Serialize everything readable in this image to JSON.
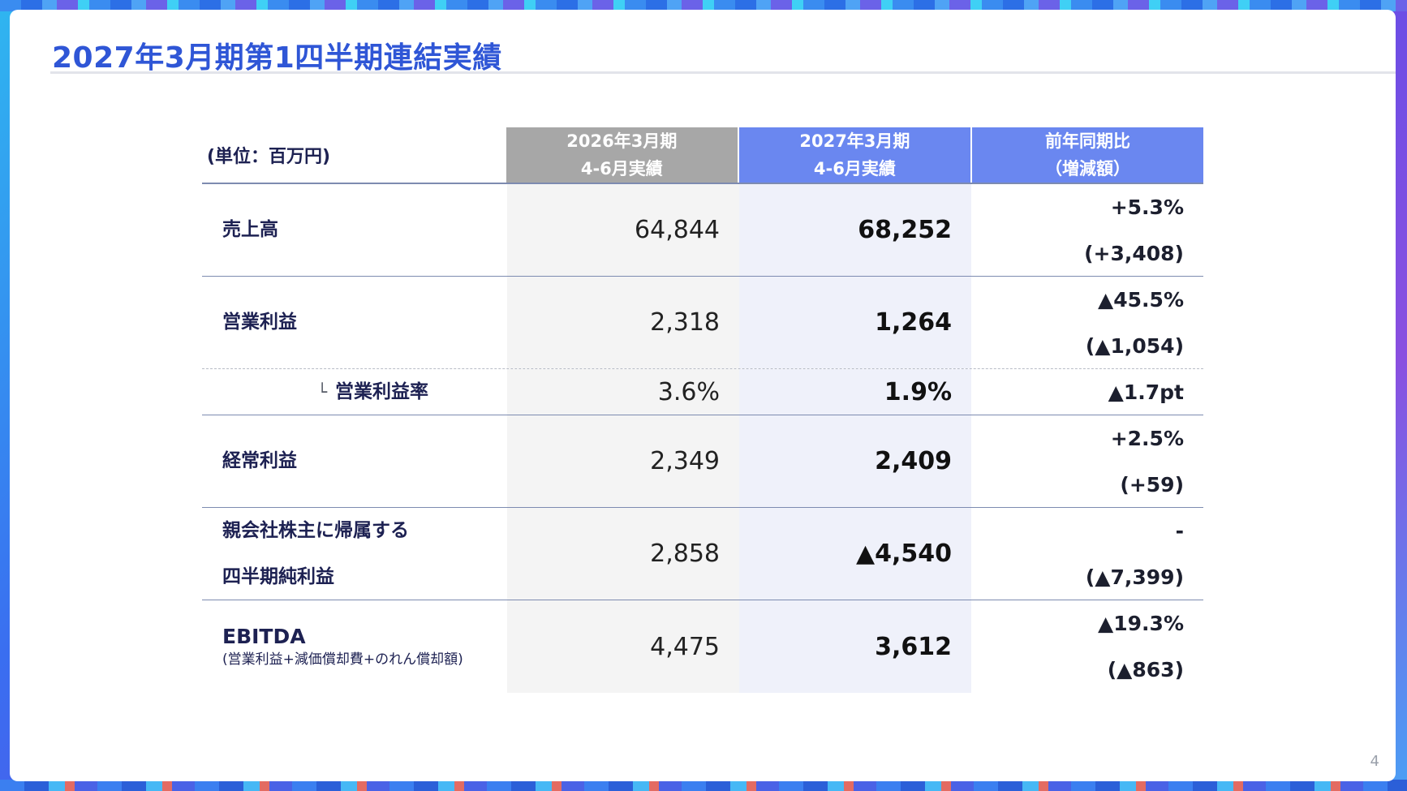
{
  "title": "2027年3月期第1四半期連結実績",
  "page_number": "4",
  "table": {
    "unit_label": "(単位：百万円)",
    "headers": {
      "prev": [
        "2026年3月期",
        "4-6月実績"
      ],
      "cur": [
        "2027年3月期",
        "4-6月実績"
      ],
      "yoy": [
        "前年同期比",
        "（増減額）"
      ]
    },
    "rows": [
      {
        "label": "売上高",
        "prev": "64,844",
        "cur": "68,252",
        "yoy_pct": "+5.3%",
        "yoy_amt": "(+3,408)"
      },
      {
        "label": "営業利益",
        "prev": "2,318",
        "cur": "1,264",
        "yoy_pct": "▲45.5%",
        "yoy_amt": "(▲1,054)"
      },
      {
        "mark": "└",
        "label": "営業利益率",
        "prev": "3.6%",
        "cur": "1.9%",
        "yoy_pct": "▲1.7pt"
      },
      {
        "label": "経常利益",
        "prev": "2,349",
        "cur": "2,409",
        "yoy_pct": "+2.5%",
        "yoy_amt": "(+59)"
      },
      {
        "label_line1": "親会社株主に帰属する",
        "label_line2": "四半期純利益",
        "prev": "2,858",
        "cur": "▲4,540",
        "yoy_pct": "-",
        "yoy_amt": "(▲7,399)"
      },
      {
        "label": "EBITDA",
        "note": "(営業利益+減価償却費+のれん償却額)",
        "prev": "4,475",
        "cur": "3,612",
        "yoy_pct": "▲19.3%",
        "yoy_amt": "(▲863)"
      }
    ]
  }
}
